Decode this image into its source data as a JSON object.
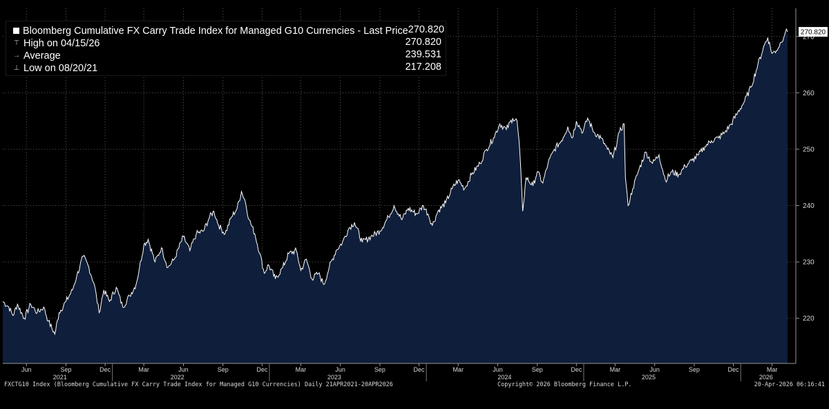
{
  "legend": {
    "series_label": "Bloomberg Cumulative FX Carry Trade Index for Managed G10 Currencies - Last Price",
    "last_price": "270.820",
    "high_label": "High on 04/15/26",
    "high_value": "270.820",
    "avg_label": "Average",
    "avg_value": "239.531",
    "low_label": "Low on 08/20/21",
    "low_value": "217.208"
  },
  "last_price_tag": "270.820",
  "footer": {
    "left": "FXCTG10 Index (Bloomberg Cumulative FX Carry Trade Index for Managed G10 Currencies) Daily 21APR2021-20APR2026",
    "center": "Copyright© 2026 Bloomberg Finance L.P.",
    "right": "20-Apr-2026 06:16:41"
  },
  "colors": {
    "background": "#000000",
    "area_fill": "#0f1e3a",
    "line": "#ffffff",
    "grid": "#5a5a5a"
  },
  "chart_data": {
    "type": "area",
    "y_axis_position": "right",
    "ylim": [
      212,
      275
    ],
    "yticks": [
      220,
      230,
      240,
      250,
      260,
      270
    ],
    "month_ticks": [
      "Jun",
      "Sep",
      "Dec",
      "Mar",
      "Jun",
      "Sep",
      "Dec",
      "Mar",
      "Jun",
      "Sep",
      "Dec",
      "Mar",
      "Jun",
      "Sep",
      "Dec",
      "Mar",
      "Jun",
      "Sep",
      "Dec",
      "Mar"
    ],
    "month_tick_dates": [
      "2021-06",
      "2021-09",
      "2021-12",
      "2022-03",
      "2022-06",
      "2022-09",
      "2022-12",
      "2023-03",
      "2023-06",
      "2023-09",
      "2023-12",
      "2024-03",
      "2024-06",
      "2024-09",
      "2024-12",
      "2025-03",
      "2025-06",
      "2025-09",
      "2025-12",
      "2026-03"
    ],
    "year_labels": [
      "2021",
      "2022",
      "2023",
      "2024",
      "2025",
      "2026"
    ],
    "x_range": [
      "2021-04-21",
      "2026-04-20"
    ],
    "points": [
      [
        "2021-04-21",
        223.0
      ],
      [
        "2021-05-05",
        222.0
      ],
      [
        "2021-05-15",
        220.5
      ],
      [
        "2021-05-25",
        222.5
      ],
      [
        "2021-06-10",
        220.0
      ],
      [
        "2021-06-25",
        222.5
      ],
      [
        "2021-07-10",
        221.0
      ],
      [
        "2021-07-25",
        222.0
      ],
      [
        "2021-08-05",
        219.5
      ],
      [
        "2021-08-20",
        217.2
      ],
      [
        "2021-08-30",
        221.0
      ],
      [
        "2021-09-15",
        223.0
      ],
      [
        "2021-09-30",
        225.0
      ],
      [
        "2021-10-10",
        227.5
      ],
      [
        "2021-10-25",
        231.0
      ],
      [
        "2021-11-05",
        229.5
      ],
      [
        "2021-11-20",
        226.0
      ],
      [
        "2021-12-01",
        221.0
      ],
      [
        "2021-12-12",
        225.0
      ],
      [
        "2021-12-25",
        223.0
      ],
      [
        "2022-01-10",
        225.5
      ],
      [
        "2022-01-25",
        222.0
      ],
      [
        "2022-02-10",
        224.0
      ],
      [
        "2022-02-25",
        226.0
      ],
      [
        "2022-03-05",
        229.0
      ],
      [
        "2022-03-15",
        233.0
      ],
      [
        "2022-03-25",
        234.0
      ],
      [
        "2022-04-10",
        230.0
      ],
      [
        "2022-04-25",
        232.5
      ],
      [
        "2022-05-10",
        229.0
      ],
      [
        "2022-05-25",
        230.5
      ],
      [
        "2022-06-15",
        234.5
      ],
      [
        "2022-06-30",
        232.0
      ],
      [
        "2022-07-15",
        235.0
      ],
      [
        "2022-08-01",
        235.5
      ],
      [
        "2022-08-15",
        238.0
      ],
      [
        "2022-08-25",
        239.0
      ],
      [
        "2022-09-05",
        236.5
      ],
      [
        "2022-09-20",
        235.0
      ],
      [
        "2022-10-05",
        238.0
      ],
      [
        "2022-10-18",
        239.5
      ],
      [
        "2022-10-28",
        242.5
      ],
      [
        "2022-11-05",
        241.0
      ],
      [
        "2022-11-15",
        237.5
      ],
      [
        "2022-11-28",
        235.0
      ],
      [
        "2022-12-10",
        231.5
      ],
      [
        "2022-12-20",
        228.0
      ],
      [
        "2022-12-30",
        229.5
      ],
      [
        "2023-01-15",
        227.0
      ],
      [
        "2023-02-01",
        229.0
      ],
      [
        "2023-02-15",
        231.5
      ],
      [
        "2023-03-05",
        232.0
      ],
      [
        "2023-03-15",
        228.5
      ],
      [
        "2023-03-28",
        230.5
      ],
      [
        "2023-04-10",
        227.0
      ],
      [
        "2023-04-25",
        228.0
      ],
      [
        "2023-05-08",
        226.0
      ],
      [
        "2023-05-20",
        229.0
      ],
      [
        "2023-06-05",
        232.0
      ],
      [
        "2023-06-20",
        233.5
      ],
      [
        "2023-07-05",
        236.0
      ],
      [
        "2023-07-18",
        237.0
      ],
      [
        "2023-08-05",
        233.5
      ],
      [
        "2023-08-25",
        234.5
      ],
      [
        "2023-09-15",
        235.5
      ],
      [
        "2023-10-05",
        238.0
      ],
      [
        "2023-10-18",
        240.0
      ],
      [
        "2023-11-05",
        237.5
      ],
      [
        "2023-11-20",
        239.5
      ],
      [
        "2023-12-10",
        238.5
      ],
      [
        "2023-12-25",
        240.0
      ],
      [
        "2024-01-05",
        238.5
      ],
      [
        "2024-01-15",
        236.5
      ],
      [
        "2024-01-28",
        239.0
      ],
      [
        "2024-02-15",
        240.5
      ],
      [
        "2024-03-01",
        243.0
      ],
      [
        "2024-03-15",
        244.5
      ],
      [
        "2024-03-30",
        243.0
      ],
      [
        "2024-04-15",
        245.5
      ],
      [
        "2024-05-05",
        247.5
      ],
      [
        "2024-05-20",
        250.0
      ],
      [
        "2024-06-05",
        252.0
      ],
      [
        "2024-06-20",
        254.5
      ],
      [
        "2024-07-05",
        253.5
      ],
      [
        "2024-07-20",
        255.5
      ],
      [
        "2024-07-30",
        255.0
      ],
      [
        "2024-08-05",
        250.0
      ],
      [
        "2024-08-12",
        239.0
      ],
      [
        "2024-08-20",
        245.0
      ],
      [
        "2024-09-05",
        243.5
      ],
      [
        "2024-09-15",
        246.0
      ],
      [
        "2024-09-28",
        244.0
      ],
      [
        "2024-10-10",
        247.5
      ],
      [
        "2024-10-25",
        250.0
      ],
      [
        "2024-11-10",
        251.5
      ],
      [
        "2024-11-25",
        254.0
      ],
      [
        "2024-12-05",
        252.0
      ],
      [
        "2024-12-15",
        255.0
      ],
      [
        "2024-12-30",
        253.0
      ],
      [
        "2025-01-10",
        255.5
      ],
      [
        "2025-01-25",
        253.0
      ],
      [
        "2025-02-10",
        252.0
      ],
      [
        "2025-02-25",
        250.0
      ],
      [
        "2025-03-10",
        248.5
      ],
      [
        "2025-03-25",
        253.0
      ],
      [
        "2025-04-05",
        254.5
      ],
      [
        "2025-04-08",
        245.0
      ],
      [
        "2025-04-14",
        240.0
      ],
      [
        "2025-04-25",
        243.0
      ],
      [
        "2025-05-10",
        246.5
      ],
      [
        "2025-05-25",
        249.5
      ],
      [
        "2025-06-10",
        247.5
      ],
      [
        "2025-06-25",
        249.0
      ],
      [
        "2025-07-10",
        244.5
      ],
      [
        "2025-07-25",
        246.0
      ],
      [
        "2025-08-10",
        245.5
      ],
      [
        "2025-08-25",
        247.0
      ],
      [
        "2025-09-10",
        248.0
      ],
      [
        "2025-09-25",
        249.0
      ],
      [
        "2025-10-10",
        250.5
      ],
      [
        "2025-10-25",
        251.5
      ],
      [
        "2025-11-10",
        252.0
      ],
      [
        "2025-11-25",
        253.0
      ],
      [
        "2025-12-10",
        254.5
      ],
      [
        "2025-12-25",
        256.5
      ],
      [
        "2026-01-10",
        258.5
      ],
      [
        "2026-01-25",
        261.0
      ],
      [
        "2026-02-10",
        265.0
      ],
      [
        "2026-02-25",
        268.5
      ],
      [
        "2026-03-05",
        269.8
      ],
      [
        "2026-03-15",
        267.0
      ],
      [
        "2026-03-25",
        267.5
      ],
      [
        "2026-04-05",
        269.0
      ],
      [
        "2026-04-15",
        270.82
      ],
      [
        "2026-04-20",
        270.82
      ]
    ]
  }
}
